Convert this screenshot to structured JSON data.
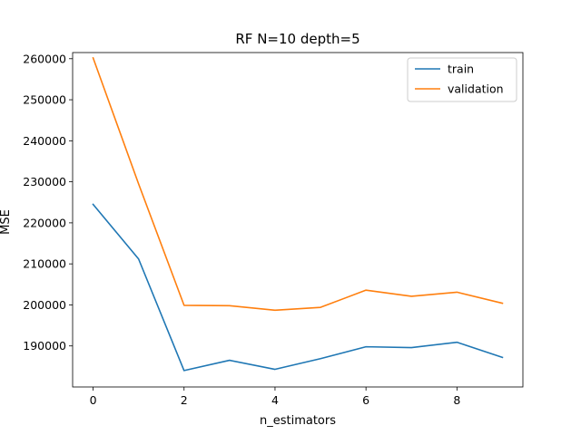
{
  "chart_data": {
    "type": "line",
    "title": "RF N=10 depth=5",
    "xlabel": "n_estimators",
    "ylabel": "MSE",
    "x": [
      0,
      1,
      2,
      3,
      4,
      5,
      6,
      7,
      8,
      9
    ],
    "xlim": [
      -0.45,
      9.45
    ],
    "ylim": [
      180000,
      261500
    ],
    "xticks": [
      0,
      2,
      4,
      6,
      8
    ],
    "yticks": [
      190000,
      200000,
      210000,
      220000,
      230000,
      240000,
      250000,
      260000
    ],
    "grid": false,
    "legend_position": "top-right",
    "series": [
      {
        "name": "train",
        "color": "#1f77b4",
        "values": [
          224500,
          211200,
          184000,
          186500,
          184300,
          186900,
          189800,
          189600,
          190900,
          187200
        ]
      },
      {
        "name": "validation",
        "color": "#ff7f0e",
        "values": [
          260200,
          229500,
          199900,
          199800,
          198700,
          199400,
          203600,
          202100,
          203100,
          200400
        ]
      }
    ]
  }
}
